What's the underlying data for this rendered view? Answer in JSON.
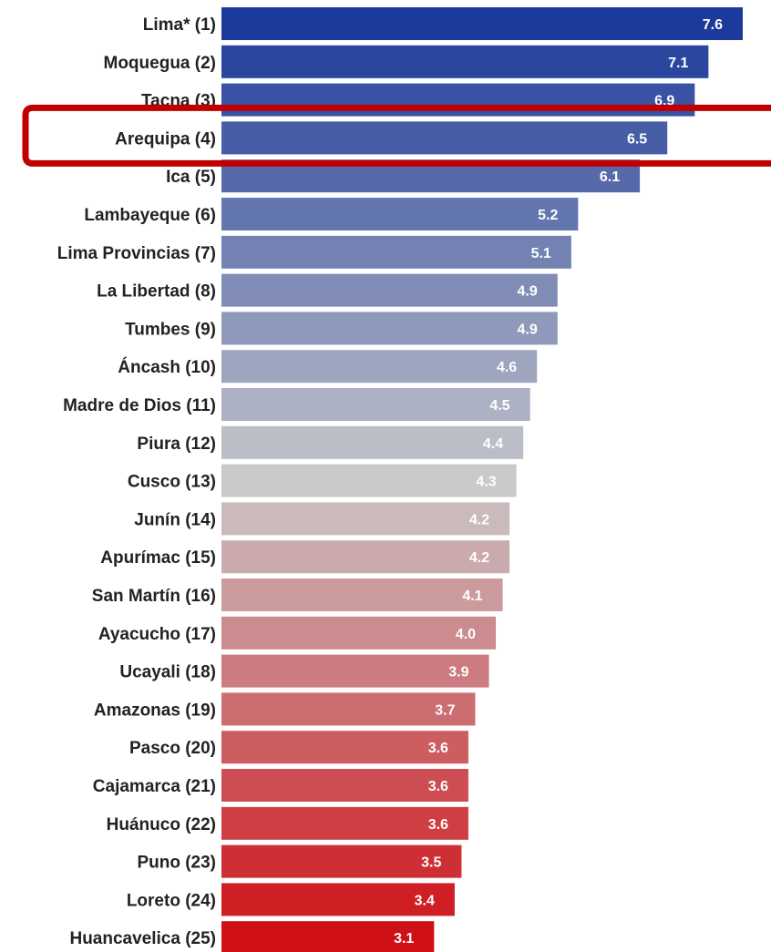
{
  "chart_data": {
    "type": "bar",
    "orientation": "horizontal",
    "categories": [
      "Lima* (1)",
      "Moquegua (2)",
      "Tacna (3)",
      "Arequipa (4)",
      "Ica (5)",
      "Lambayeque (6)",
      "Lima Provincias (7)",
      "La Libertad (8)",
      "Tumbes (9)",
      "Áncash (10)",
      "Madre de Dios (11)",
      "Piura (12)",
      "Cusco (13)",
      "Junín (14)",
      "Apurímac (15)",
      "San Martín (16)",
      "Ayacucho (17)",
      "Ucayali (18)",
      "Amazonas (19)",
      "Pasco (20)",
      "Cajamarca (21)",
      "Huánuco (22)",
      "Puno (23)",
      "Loreto (24)",
      "Huancavelica (25)"
    ],
    "values": [
      7.6,
      7.1,
      6.9,
      6.5,
      6.1,
      5.2,
      5.1,
      4.9,
      4.9,
      4.6,
      4.5,
      4.4,
      4.3,
      4.2,
      4.2,
      4.1,
      4.0,
      3.9,
      3.7,
      3.6,
      3.6,
      3.6,
      3.5,
      3.4,
      3.1
    ],
    "value_labels": [
      "7.6",
      "7.1",
      "6.9",
      "6.5",
      "6.1",
      "5.2",
      "5.1",
      "4.9",
      "4.9",
      "4.6",
      "4.5",
      "4.4",
      "4.3",
      "4.2",
      "4.2",
      "4.1",
      "4.0",
      "3.9",
      "3.7",
      "3.6",
      "3.6",
      "3.6",
      "3.5",
      "3.4",
      "3.1"
    ],
    "xlim": [
      0,
      7.6
    ],
    "grid": false,
    "legend": "none",
    "color_gradient": [
      "#1c3a9b",
      "#c9c9cb",
      "#cf1016"
    ],
    "highlight": {
      "category": "Arequipa (4)",
      "color": "#c00000"
    }
  }
}
